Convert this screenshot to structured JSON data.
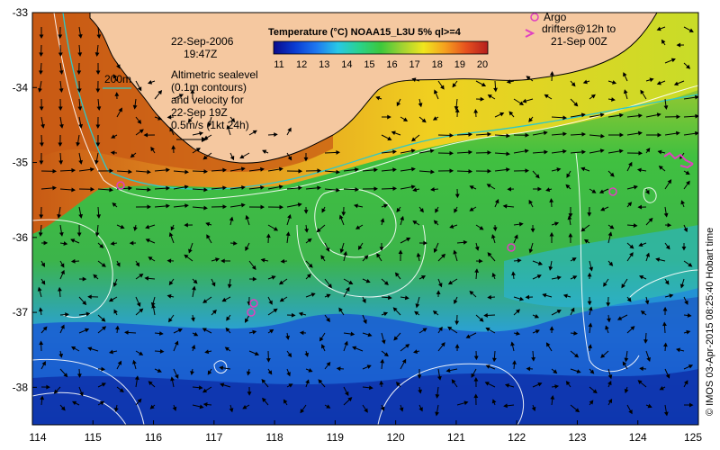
{
  "map": {
    "title": "Temperature (°C) NOAA15_L3U 5% ql>=4",
    "date": "22-Sep-2006",
    "time": "19:47Z",
    "contour_label": "200m",
    "altimetry_text": [
      "Altimetric sealevel",
      "(0.1m contours)",
      "and velocity for",
      "22-Sep 19Z"
    ],
    "velocity_scale_label": "0.5m/s (1kt 24h)",
    "argo_label": "Argo",
    "drifters_label_lines": [
      "drifters@12h to",
      "21-Sep 00Z"
    ],
    "credit": "© IMOS 03-Apr-2015 08:25:40 Hobart time",
    "colorbar_ticks": [
      "11",
      "12",
      "13",
      "14",
      "15",
      "16",
      "17",
      "18",
      "19",
      "20"
    ],
    "colorbar_colors": [
      "#0a0a8c",
      "#0a3cd2",
      "#1e78f0",
      "#28c8e6",
      "#2ad28c",
      "#3cc83c",
      "#a0d232",
      "#f0e61e",
      "#f5a01e",
      "#e6501e",
      "#b41e1e"
    ],
    "lat_ticks": [
      "-33",
      "-34",
      "-35",
      "-36",
      "-37",
      "-38"
    ],
    "lon_ticks": [
      "114",
      "115",
      "116",
      "117",
      "118",
      "119",
      "120",
      "121",
      "122",
      "123",
      "124",
      "125"
    ]
  }
}
